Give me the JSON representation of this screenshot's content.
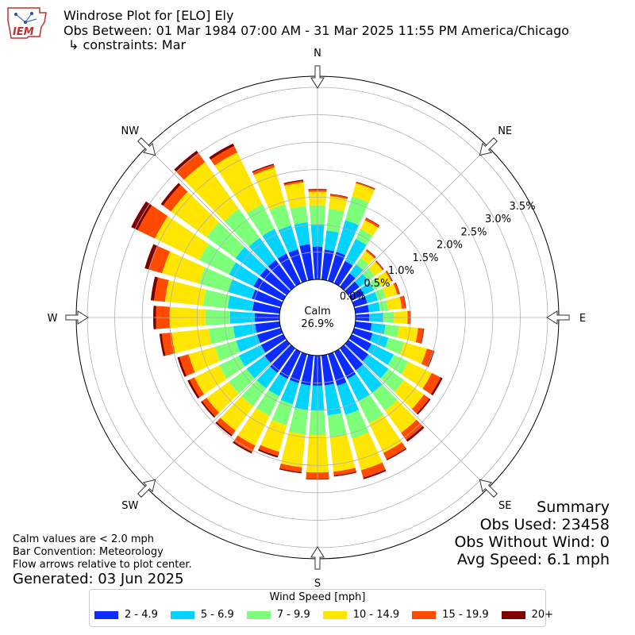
{
  "header": {
    "title": "Windrose Plot for [ELO] Ely",
    "obs_between": "Obs Between: 01 Mar 1984 07:00 AM - 31 Mar 2025 11:55 PM America/Chicago",
    "constraints": "↳ constraints: Mar",
    "logo_text": "IEM"
  },
  "notes": {
    "calm": "Calm values are < 2.0 mph",
    "bar_convention": "Bar Convention: Meteorology",
    "flow_arrows": "Flow arrows relative to plot center.",
    "generated": "Generated: 03 Jun 2025"
  },
  "summary": {
    "title": "Summary",
    "obs_used": "Obs Used: 23458",
    "obs_without_wind": "Obs Without Wind: 0",
    "avg_speed": "Avg Speed: 6.1 mph"
  },
  "legend": {
    "title": "Wind Speed [mph]"
  },
  "chart_data": {
    "type": "windrose",
    "calm": {
      "label": "Calm",
      "value": "26.9%"
    },
    "compass_labels": [
      "N",
      "NE",
      "E",
      "SE",
      "S",
      "SW",
      "W",
      "NW"
    ],
    "radial_ticks": [
      "0.0%",
      "0.5%",
      "1.0%",
      "1.5%",
      "2.0%",
      "2.5%",
      "3.0%",
      "3.5%"
    ],
    "radial_max": 3.5,
    "grid": true,
    "legend_position": "bottom",
    "bins": [
      {
        "name": "2 - 4.9",
        "color": "#0c2cff"
      },
      {
        "name": "5 - 6.9",
        "color": "#00d4ff"
      },
      {
        "name": "7 - 9.9",
        "color": "#7dff7a"
      },
      {
        "name": "10 - 14.9",
        "color": "#ffe600"
      },
      {
        "name": "15 - 19.9",
        "color": "#ff4a00"
      },
      {
        "name": "20+",
        "color": "#800000"
      }
    ],
    "direction_step_deg": 10,
    "directions": [
      0,
      10,
      20,
      30,
      40,
      50,
      60,
      70,
      80,
      90,
      100,
      110,
      120,
      130,
      140,
      150,
      160,
      170,
      180,
      190,
      200,
      210,
      220,
      230,
      240,
      250,
      260,
      270,
      280,
      290,
      300,
      310,
      320,
      330,
      340,
      350
    ],
    "cumulative_percent": [
      [
        0.6,
        1.0,
        1.35,
        1.6,
        1.64,
        1.65
      ],
      [
        0.55,
        0.9,
        1.3,
        1.53,
        1.56,
        1.57
      ],
      [
        0.55,
        1.15,
        1.6,
        1.85,
        1.87,
        1.88
      ],
      [
        0.45,
        0.9,
        1.1,
        1.28,
        1.32,
        1.33
      ],
      [
        0.3,
        0.5,
        0.65,
        0.8,
        0.83,
        0.84
      ],
      [
        0.25,
        0.45,
        0.6,
        0.77,
        0.79,
        0.8
      ],
      [
        0.25,
        0.45,
        0.6,
        0.8,
        0.82,
        0.83
      ],
      [
        0.25,
        0.45,
        0.6,
        0.82,
        0.86,
        0.87
      ],
      [
        0.25,
        0.45,
        0.6,
        0.85,
        0.92,
        0.93
      ],
      [
        0.25,
        0.5,
        0.7,
        0.95,
        1.0,
        1.01
      ],
      [
        0.3,
        0.55,
        0.8,
        1.15,
        1.25,
        1.26
      ],
      [
        0.35,
        0.65,
        0.95,
        1.38,
        1.5,
        1.52
      ],
      [
        0.4,
        0.85,
        1.15,
        1.62,
        1.8,
        1.84
      ],
      [
        0.45,
        0.9,
        1.25,
        1.7,
        1.82,
        1.85
      ],
      [
        0.5,
        1.0,
        1.4,
        1.9,
        2.06,
        2.1
      ],
      [
        0.55,
        1.0,
        1.45,
        2.05,
        2.18,
        2.2
      ],
      [
        0.6,
        1.15,
        1.6,
        2.2,
        2.34,
        2.37
      ],
      [
        0.55,
        1.1,
        1.5,
        2.13,
        2.2,
        2.22
      ],
      [
        0.55,
        1.0,
        1.45,
        2.13,
        2.25,
        2.26
      ],
      [
        0.55,
        1.0,
        1.45,
        2.05,
        2.14,
        2.16
      ],
      [
        0.55,
        0.95,
        1.35,
        1.85,
        1.93,
        1.96
      ],
      [
        0.55,
        0.9,
        1.3,
        1.9,
        2.03,
        2.06
      ],
      [
        0.55,
        0.9,
        1.3,
        1.85,
        1.95,
        1.98
      ],
      [
        0.5,
        0.9,
        1.3,
        1.8,
        1.9,
        1.93
      ],
      [
        0.45,
        0.9,
        1.3,
        1.8,
        1.9,
        1.94
      ],
      [
        0.45,
        0.85,
        1.25,
        1.75,
        1.92,
        1.96
      ],
      [
        0.45,
        0.85,
        1.3,
        1.98,
        2.16,
        2.2
      ],
      [
        0.45,
        0.9,
        1.35,
        2.0,
        2.25,
        2.3
      ],
      [
        0.5,
        0.95,
        1.4,
        2.1,
        2.3,
        2.36
      ],
      [
        0.55,
        1.0,
        1.55,
        2.25,
        2.5,
        2.58
      ],
      [
        0.6,
        1.1,
        1.7,
        2.6,
        2.95,
        3.08
      ],
      [
        0.6,
        1.15,
        1.8,
        2.6,
        2.78,
        2.83
      ],
      [
        0.6,
        1.1,
        1.75,
        2.8,
        3.0,
        3.06
      ],
      [
        0.6,
        1.1,
        1.6,
        2.65,
        2.78,
        2.83
      ],
      [
        0.6,
        1.05,
        1.45,
        2.15,
        2.2,
        2.22
      ],
      [
        0.65,
        1.05,
        1.35,
        1.78,
        1.81,
        1.83
      ]
    ]
  }
}
